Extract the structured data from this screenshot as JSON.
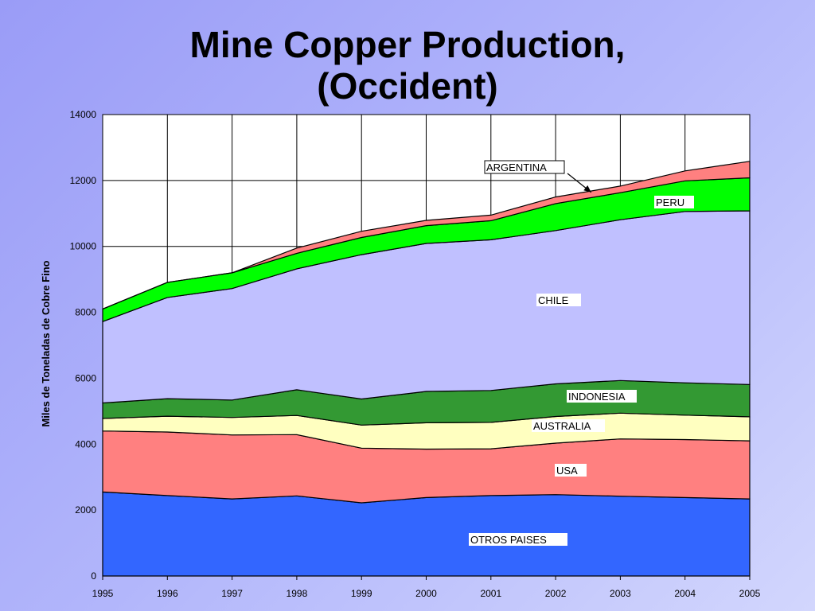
{
  "slide": {
    "title_line1": "Mine Copper Production,",
    "title_line2": "(Occident)"
  },
  "chart_data": {
    "type": "area",
    "stacked": true,
    "title": "Mine Copper Production, (Occident)",
    "xlabel": "",
    "ylabel": "Miles de Toneladas de Cobre Fino",
    "x": [
      1995,
      1996,
      1997,
      1998,
      1999,
      2000,
      2001,
      2002,
      2003,
      2004,
      2005
    ],
    "ylim": [
      0,
      14000
    ],
    "yticks": [
      0,
      2000,
      4000,
      6000,
      8000,
      10000,
      12000,
      14000
    ],
    "grid": true,
    "series": [
      {
        "name": "OTROS PAISES",
        "color": "#3366ff",
        "values": [
          2550,
          2440,
          2340,
          2430,
          2220,
          2380,
          2440,
          2470,
          2420,
          2380,
          2340
        ]
      },
      {
        "name": "USA",
        "color": "#ff8080",
        "values": [
          1850,
          1930,
          1940,
          1860,
          1660,
          1470,
          1420,
          1560,
          1740,
          1760,
          1760
        ]
      },
      {
        "name": "AUSTRALIA",
        "color": "#ffffc0",
        "values": [
          380,
          480,
          530,
          580,
          700,
          800,
          800,
          810,
          780,
          740,
          730
        ]
      },
      {
        "name": "INDONESIA",
        "color": "#339933",
        "values": [
          470,
          530,
          530,
          780,
          790,
          950,
          970,
          990,
          990,
          980,
          980
        ]
      },
      {
        "name": "CHILE",
        "color": "#c0c0ff",
        "values": [
          2470,
          3070,
          3380,
          3670,
          4380,
          4490,
          4570,
          4650,
          4880,
          5200,
          5270
        ]
      },
      {
        "name": "PERU",
        "color": "#00ff00",
        "values": [
          380,
          460,
          480,
          470,
          520,
          540,
          580,
          820,
          820,
          930,
          1000
        ]
      },
      {
        "name": "ARGENTINA",
        "color": "#ff8080",
        "values": [
          0,
          0,
          0,
          160,
          190,
          160,
          170,
          200,
          200,
          300,
          500
        ]
      }
    ],
    "annotations": [
      {
        "text": "ARGENTINA",
        "series": "ARGENTINA",
        "arrow": true
      },
      {
        "text": "PERU",
        "series": "PERU"
      },
      {
        "text": "CHILE",
        "series": "CHILE"
      },
      {
        "text": "INDONESIA",
        "series": "INDONESIA"
      },
      {
        "text": "AUSTRALIA",
        "series": "AUSTRALIA"
      },
      {
        "text": "USA",
        "series": "USA"
      },
      {
        "text": "OTROS PAISES",
        "series": "OTROS PAISES"
      }
    ]
  }
}
